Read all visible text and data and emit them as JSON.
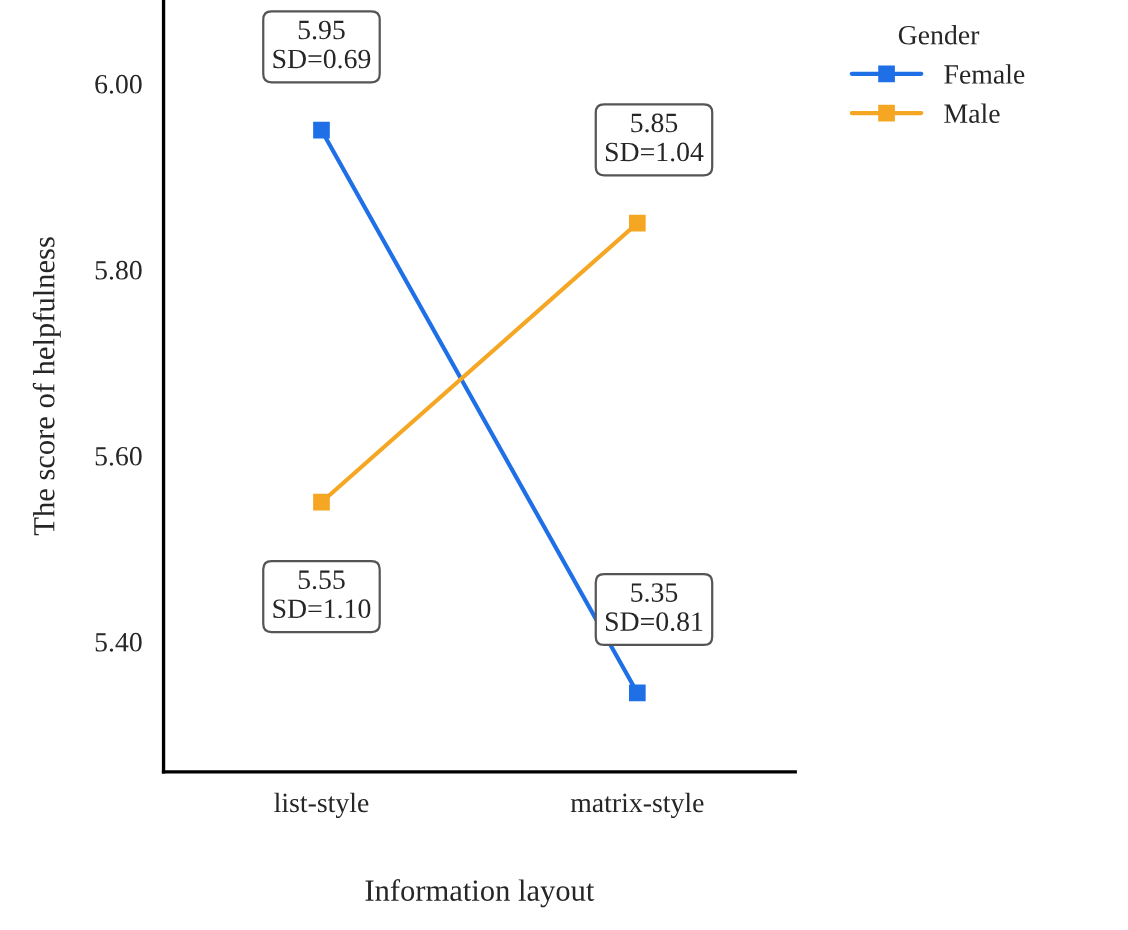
{
  "chart_data": {
    "type": "line",
    "xlabel": "Information layout",
    "ylabel": "The score of helpfulness",
    "legend_title": "Gender",
    "categories": [
      "list-style",
      "matrix-style"
    ],
    "series": [
      {
        "name": "Female",
        "color": "#1f6fe6",
        "values": [
          5.95,
          5.345
        ]
      },
      {
        "name": "Male",
        "color": "#f5a623",
        "values": [
          5.55,
          5.85
        ]
      }
    ],
    "ylim": [
      5.26,
      6.09
    ],
    "yticks": [
      {
        "value": 5.4,
        "label": "5.40"
      },
      {
        "value": 5.6,
        "label": "5.60"
      },
      {
        "value": 5.8,
        "label": "5.80"
      },
      {
        "value": 6.0,
        "label": "6.00"
      }
    ],
    "annotations": [
      {
        "text": "5.95\nSD=0.69",
        "x": "list-style",
        "y": 5.95
      },
      {
        "text": "5.55\nSD=1.10",
        "x": "list-style",
        "y": 5.55
      },
      {
        "text": "5.85\nSD=1.04",
        "x": "matrix-style",
        "y": 5.85
      },
      {
        "text": "5.35\nSD=0.81",
        "x": "matrix-style",
        "y": 5.345
      }
    ],
    "legend": "right",
    "grid": false,
    "marker": "square",
    "line_style": "solid"
  }
}
